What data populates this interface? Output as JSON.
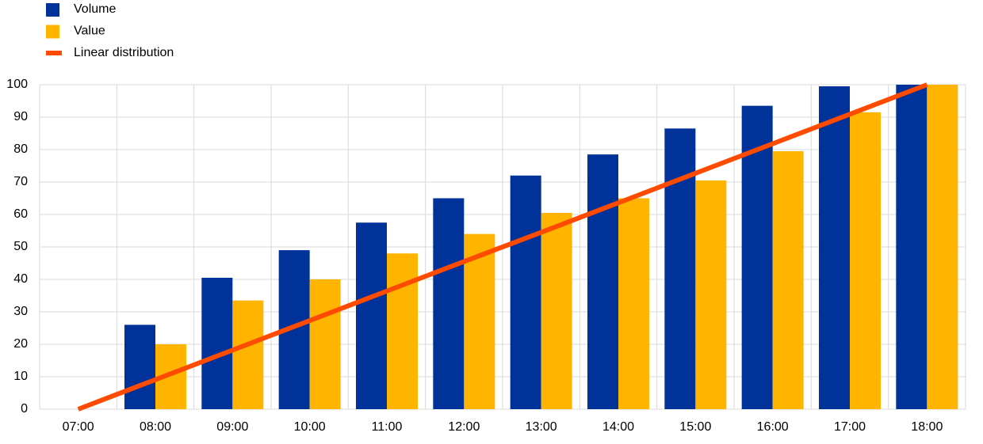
{
  "chart_data": {
    "type": "bar",
    "categories": [
      "07:00",
      "08:00",
      "09:00",
      "10:00",
      "11:00",
      "12:00",
      "13:00",
      "14:00",
      "15:00",
      "16:00",
      "17:00",
      "18:00"
    ],
    "series": [
      {
        "name": "Volume",
        "type": "bar",
        "color": "#003299",
        "values": [
          0,
          26,
          40.5,
          49,
          57.5,
          65,
          72,
          78.5,
          86.5,
          93.5,
          99.5,
          100
        ]
      },
      {
        "name": "Value",
        "type": "bar",
        "color": "#ffb400",
        "values": [
          0,
          20,
          33.5,
          40,
          48,
          54,
          60.5,
          65,
          70.5,
          79.5,
          91.5,
          100
        ]
      },
      {
        "name": "Linear distribution",
        "type": "line",
        "color": "#ff4b00",
        "values": [
          0,
          9.1,
          18.2,
          27.3,
          36.4,
          45.5,
          54.5,
          63.6,
          72.7,
          81.8,
          90.9,
          100
        ]
      }
    ],
    "ylim": [
      0,
      100
    ],
    "yticks": [
      0,
      10,
      20,
      30,
      40,
      50,
      60,
      70,
      80,
      90,
      100
    ],
    "grid": true,
    "legend": "top-left"
  }
}
